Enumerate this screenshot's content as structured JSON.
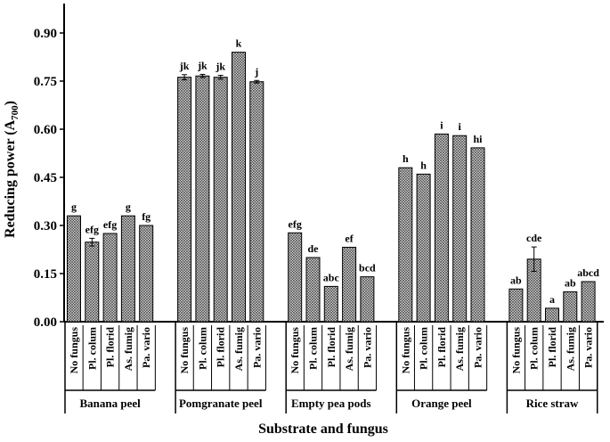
{
  "chart_data": {
    "type": "bar",
    "xlabel": "Substrate and fungus",
    "ylabel": "Reducing power (A",
    "ylabel_sub": "700",
    "ylabel_close": ")",
    "ylim": [
      0,
      0.9
    ],
    "yticks": [
      "0.00",
      "0.15",
      "0.30",
      "0.45",
      "0.60",
      "0.75",
      "0.90"
    ],
    "grid": false,
    "legend": "none",
    "groups": [
      {
        "substrate": "Banana peel",
        "bars": [
          {
            "fungus": "No fungus",
            "value": 0.33,
            "error": 0.0,
            "letter": "g"
          },
          {
            "fungus": "Pl. colum",
            "value": 0.248,
            "error": 0.012,
            "letter": "efg"
          },
          {
            "fungus": "Pl. florid",
            "value": 0.275,
            "error": 0.0,
            "letter": "efg"
          },
          {
            "fungus": "As. fumig",
            "value": 0.33,
            "error": 0.0,
            "letter": "g"
          },
          {
            "fungus": "Pa. vario",
            "value": 0.3,
            "error": 0.0,
            "letter": "fg"
          }
        ]
      },
      {
        "substrate": "Pomgranate peel",
        "bars": [
          {
            "fungus": "No fungus",
            "value": 0.762,
            "error": 0.008,
            "letter": "jk"
          },
          {
            "fungus": "Pl. colum",
            "value": 0.766,
            "error": 0.005,
            "letter": "jk"
          },
          {
            "fungus": "Pl. florid",
            "value": 0.762,
            "error": 0.006,
            "letter": "jk"
          },
          {
            "fungus": "As. fumig",
            "value": 0.84,
            "error": 0.0,
            "letter": "k"
          },
          {
            "fungus": "Pa. vario",
            "value": 0.748,
            "error": 0.004,
            "letter": "j"
          }
        ]
      },
      {
        "substrate": "Empty pea pods",
        "bars": [
          {
            "fungus": "No fungus",
            "value": 0.277,
            "error": 0.0,
            "letter": "efg"
          },
          {
            "fungus": "Pl. colum",
            "value": 0.2,
            "error": 0.0,
            "letter": "de"
          },
          {
            "fungus": "Pl. florid",
            "value": 0.11,
            "error": 0.0,
            "letter": "abc"
          },
          {
            "fungus": "As. fumig",
            "value": 0.232,
            "error": 0.0,
            "letter": "ef"
          },
          {
            "fungus": "Pa. vario",
            "value": 0.14,
            "error": 0.0,
            "letter": "bcd"
          }
        ]
      },
      {
        "substrate": "Orange peel",
        "bars": [
          {
            "fungus": "No fungus",
            "value": 0.48,
            "error": 0.0,
            "letter": "h"
          },
          {
            "fungus": "Pl. colum",
            "value": 0.46,
            "error": 0.0,
            "letter": "h"
          },
          {
            "fungus": "Pl. florid",
            "value": 0.585,
            "error": 0.0,
            "letter": "i"
          },
          {
            "fungus": "As. fumig",
            "value": 0.58,
            "error": 0.0,
            "letter": "i"
          },
          {
            "fungus": "Pa. vario",
            "value": 0.542,
            "error": 0.0,
            "letter": "hi"
          }
        ]
      },
      {
        "substrate": "Rice straw",
        "bars": [
          {
            "fungus": "No fungus",
            "value": 0.102,
            "error": 0.0,
            "letter": "ab"
          },
          {
            "fungus": "Pl. colum",
            "value": 0.195,
            "error": 0.038,
            "letter": "cde"
          },
          {
            "fungus": "Pl. florid",
            "value": 0.042,
            "error": 0.0,
            "letter": "a"
          },
          {
            "fungus": "As. fumig",
            "value": 0.093,
            "error": 0.0,
            "letter": "ab"
          },
          {
            "fungus": "Pa. vario",
            "value": 0.125,
            "error": 0.0,
            "letter": "abcd"
          }
        ]
      }
    ]
  }
}
